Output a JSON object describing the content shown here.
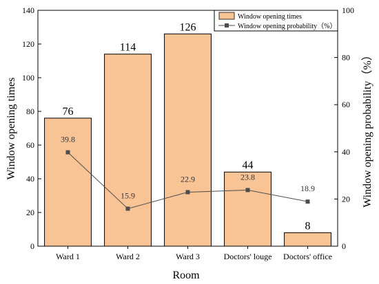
{
  "chart_data": {
    "type": "bar",
    "categories": [
      "Ward 1",
      "Ward 2",
      "Ward 3",
      "Doctors' louge",
      "Doctors' office"
    ],
    "series": [
      {
        "name": "Window opening times",
        "type": "bar",
        "axis": "left",
        "color": "#f8c496",
        "values": [
          76,
          114,
          126,
          44,
          8
        ],
        "labels": [
          "76",
          "114",
          "126",
          "44",
          "8"
        ]
      },
      {
        "name": "Window opening probability（%）",
        "type": "line",
        "axis": "right",
        "color": "#4d4d4d",
        "values": [
          39.8,
          15.9,
          22.9,
          23.8,
          18.9
        ],
        "labels": [
          "39.8",
          "15.9",
          "22.9",
          "23.8",
          "18.9"
        ]
      }
    ],
    "xlabel": "Room",
    "ylabel": "Window opening times",
    "ylabel_right": "Window opening probability（%）",
    "ylim": [
      0,
      140
    ],
    "ylim_right": [
      0,
      100
    ],
    "yticks": [
      "0",
      "20",
      "40",
      "60",
      "80",
      "100",
      "120",
      "140"
    ],
    "yticks_right": [
      "0",
      "20",
      "40",
      "60",
      "80",
      "100"
    ],
    "grid": false,
    "legend": "top-right"
  }
}
